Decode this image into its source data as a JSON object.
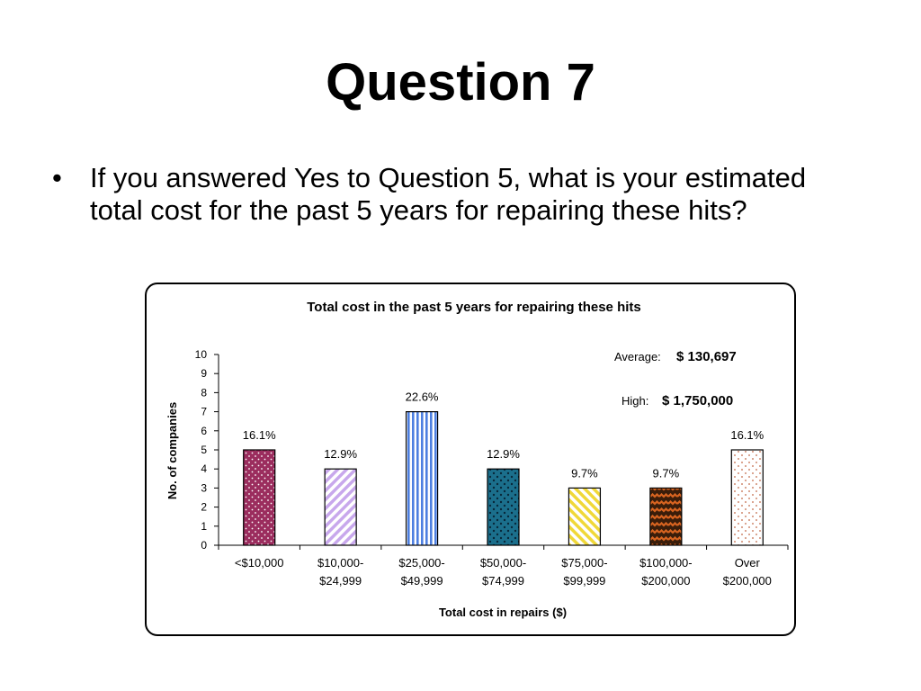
{
  "slide": {
    "title": "Question 7",
    "bullet": "If you answered Yes to Question 5, what is your estimated total cost for the past 5 years for repairing these hits?"
  },
  "chart_data": {
    "type": "bar",
    "title": "Total cost in the past 5 years for repairing these hits",
    "xlabel": "Total cost in repairs ($)",
    "ylabel": "No. of companies",
    "ylim": [
      0,
      10
    ],
    "yticks": [
      "0",
      "1",
      "2",
      "3",
      "4",
      "5",
      "6",
      "7",
      "8",
      "9",
      "10"
    ],
    "categories": [
      [
        "<$10,000",
        ""
      ],
      [
        "$10,000-",
        "$24,999"
      ],
      [
        "$25,000-",
        "$49,999"
      ],
      [
        "$50,000-",
        "$74,999"
      ],
      [
        "$75,000-",
        "$99,999"
      ],
      [
        "$100,000-",
        "$200,000"
      ],
      [
        "Over",
        "$200,000"
      ]
    ],
    "values": [
      5,
      4,
      7,
      4,
      3,
      3,
      5
    ],
    "data_labels": [
      "16.1%",
      "12.9%",
      "22.6%",
      "12.9%",
      "9.7%",
      "9.7%",
      "16.1%"
    ],
    "bar_colors": [
      "#9b2d5e",
      "#c8a8ec",
      "#4d7fe0",
      "#1b6f8c",
      "#f0d838",
      "#d86420",
      "#d08a70"
    ],
    "annotations": {
      "average_label": "Average:",
      "average_value": "$ 130,697",
      "high_label": "High:",
      "high_value": "$ 1,750,000"
    }
  }
}
